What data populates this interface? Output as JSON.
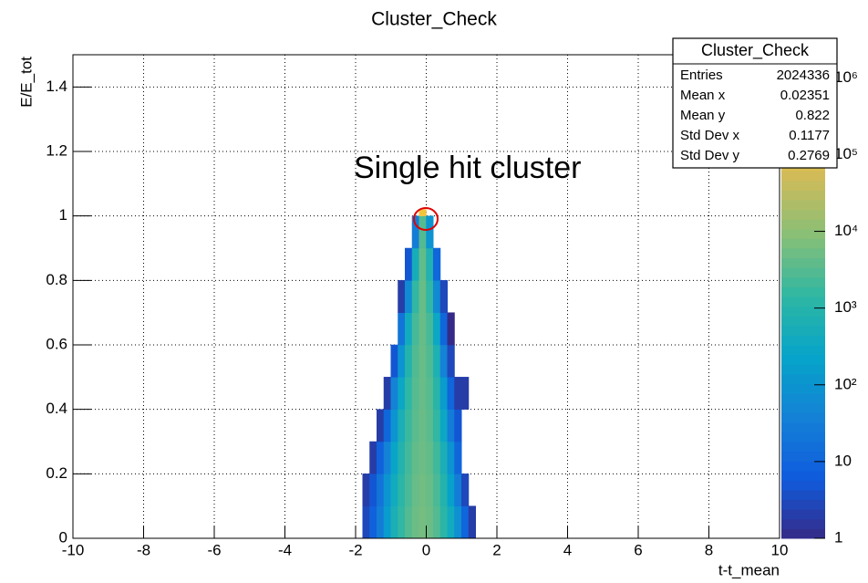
{
  "chart_data": {
    "type": "heatmap",
    "title": "Cluster_Check",
    "x_label": "t-t_mean",
    "y_label": "E/E_tot",
    "annotation": "Single hit cluster",
    "xlim": [
      -10,
      10
    ],
    "ylim": [
      0,
      1.5
    ],
    "zlim": [
      1,
      2000000
    ],
    "zlog": true,
    "grid": true,
    "xticks": [
      -10,
      -8,
      -6,
      -4,
      -2,
      0,
      2,
      4,
      6,
      8,
      10
    ],
    "yticks": [
      0,
      0.2,
      0.4,
      0.6,
      0.8,
      1,
      1.2,
      1.4
    ],
    "zticks": [
      1,
      10,
      {
        "value": 100,
        "label": "10²"
      },
      {
        "value": 1000,
        "label": "10³"
      },
      {
        "value": 10000,
        "label": "10⁴"
      },
      {
        "value": 100000,
        "label": "10⁵"
      },
      {
        "value": 1000000,
        "label": "10⁶"
      }
    ],
    "colorscale": [
      "#352a87",
      "#0f5cdd",
      "#1481d6",
      "#06a4ca",
      "#2eb7a4",
      "#87bf77",
      "#d1bb59",
      "#fec832",
      "#f9fb0e"
    ],
    "xbins": [
      -2,
      -1.8,
      -1.6,
      -1.4,
      -1.2,
      -1,
      -0.8,
      -0.6,
      -0.4,
      -0.2,
      0,
      0.2,
      0.4,
      0.6,
      0.8,
      1,
      1.2,
      1.4,
      1.6
    ],
    "ybins": [
      0,
      0.1,
      0.2,
      0.3,
      0.4,
      0.5,
      0.6,
      0.7,
      0.8,
      0.9,
      1,
      1.02
    ],
    "z": [
      [
        0,
        3,
        8,
        30,
        150,
        600,
        1500,
        3000,
        5000,
        6000,
        5000,
        3000,
        1200,
        400,
        80,
        10,
        2,
        0
      ],
      [
        0,
        2,
        5,
        20,
        100,
        400,
        1200,
        2500,
        4500,
        5500,
        4500,
        2500,
        900,
        200,
        30,
        3,
        0,
        0
      ],
      [
        0,
        0,
        2,
        8,
        40,
        250,
        900,
        2200,
        4000,
        5000,
        4000,
        2000,
        600,
        100,
        10,
        0,
        0,
        0
      ],
      [
        0,
        0,
        0,
        2,
        10,
        100,
        600,
        1800,
        3500,
        4800,
        3500,
        1500,
        300,
        30,
        5,
        0,
        0,
        0
      ],
      [
        0,
        0,
        0,
        0,
        2,
        40,
        300,
        1400,
        3200,
        4600,
        3200,
        1100,
        150,
        10,
        2,
        2,
        0,
        0
      ],
      [
        0,
        0,
        0,
        0,
        0,
        5,
        100,
        900,
        2800,
        4500,
        2800,
        700,
        40,
        3,
        0,
        0,
        0,
        0
      ],
      [
        0,
        0,
        0,
        0,
        0,
        0,
        20,
        400,
        2300,
        4500,
        2300,
        300,
        10,
        1,
        0,
        0,
        0,
        0
      ],
      [
        0,
        0,
        0,
        0,
        0,
        0,
        2,
        60,
        1500,
        4500,
        1500,
        60,
        3,
        0,
        0,
        0,
        0,
        0
      ],
      [
        0,
        0,
        0,
        0,
        0,
        0,
        0,
        5,
        500,
        4000,
        800,
        10,
        0,
        0,
        0,
        0,
        0,
        0
      ],
      [
        0,
        0,
        0,
        0,
        0,
        0,
        0,
        0,
        30,
        3000,
        100,
        0,
        0,
        0,
        0,
        0,
        0,
        0
      ],
      [
        0,
        0,
        0,
        0,
        0,
        0,
        0,
        0,
        0,
        200000,
        0,
        0,
        0,
        0,
        0,
        0,
        0,
        0
      ]
    ],
    "stats": {
      "title": "Cluster_Check",
      "labels": [
        "Entries",
        "Mean x",
        "Mean y",
        "Std Dev x",
        "Std Dev y"
      ],
      "values": [
        2024336,
        0.02351,
        0.822,
        0.1177,
        0.2769
      ]
    }
  }
}
